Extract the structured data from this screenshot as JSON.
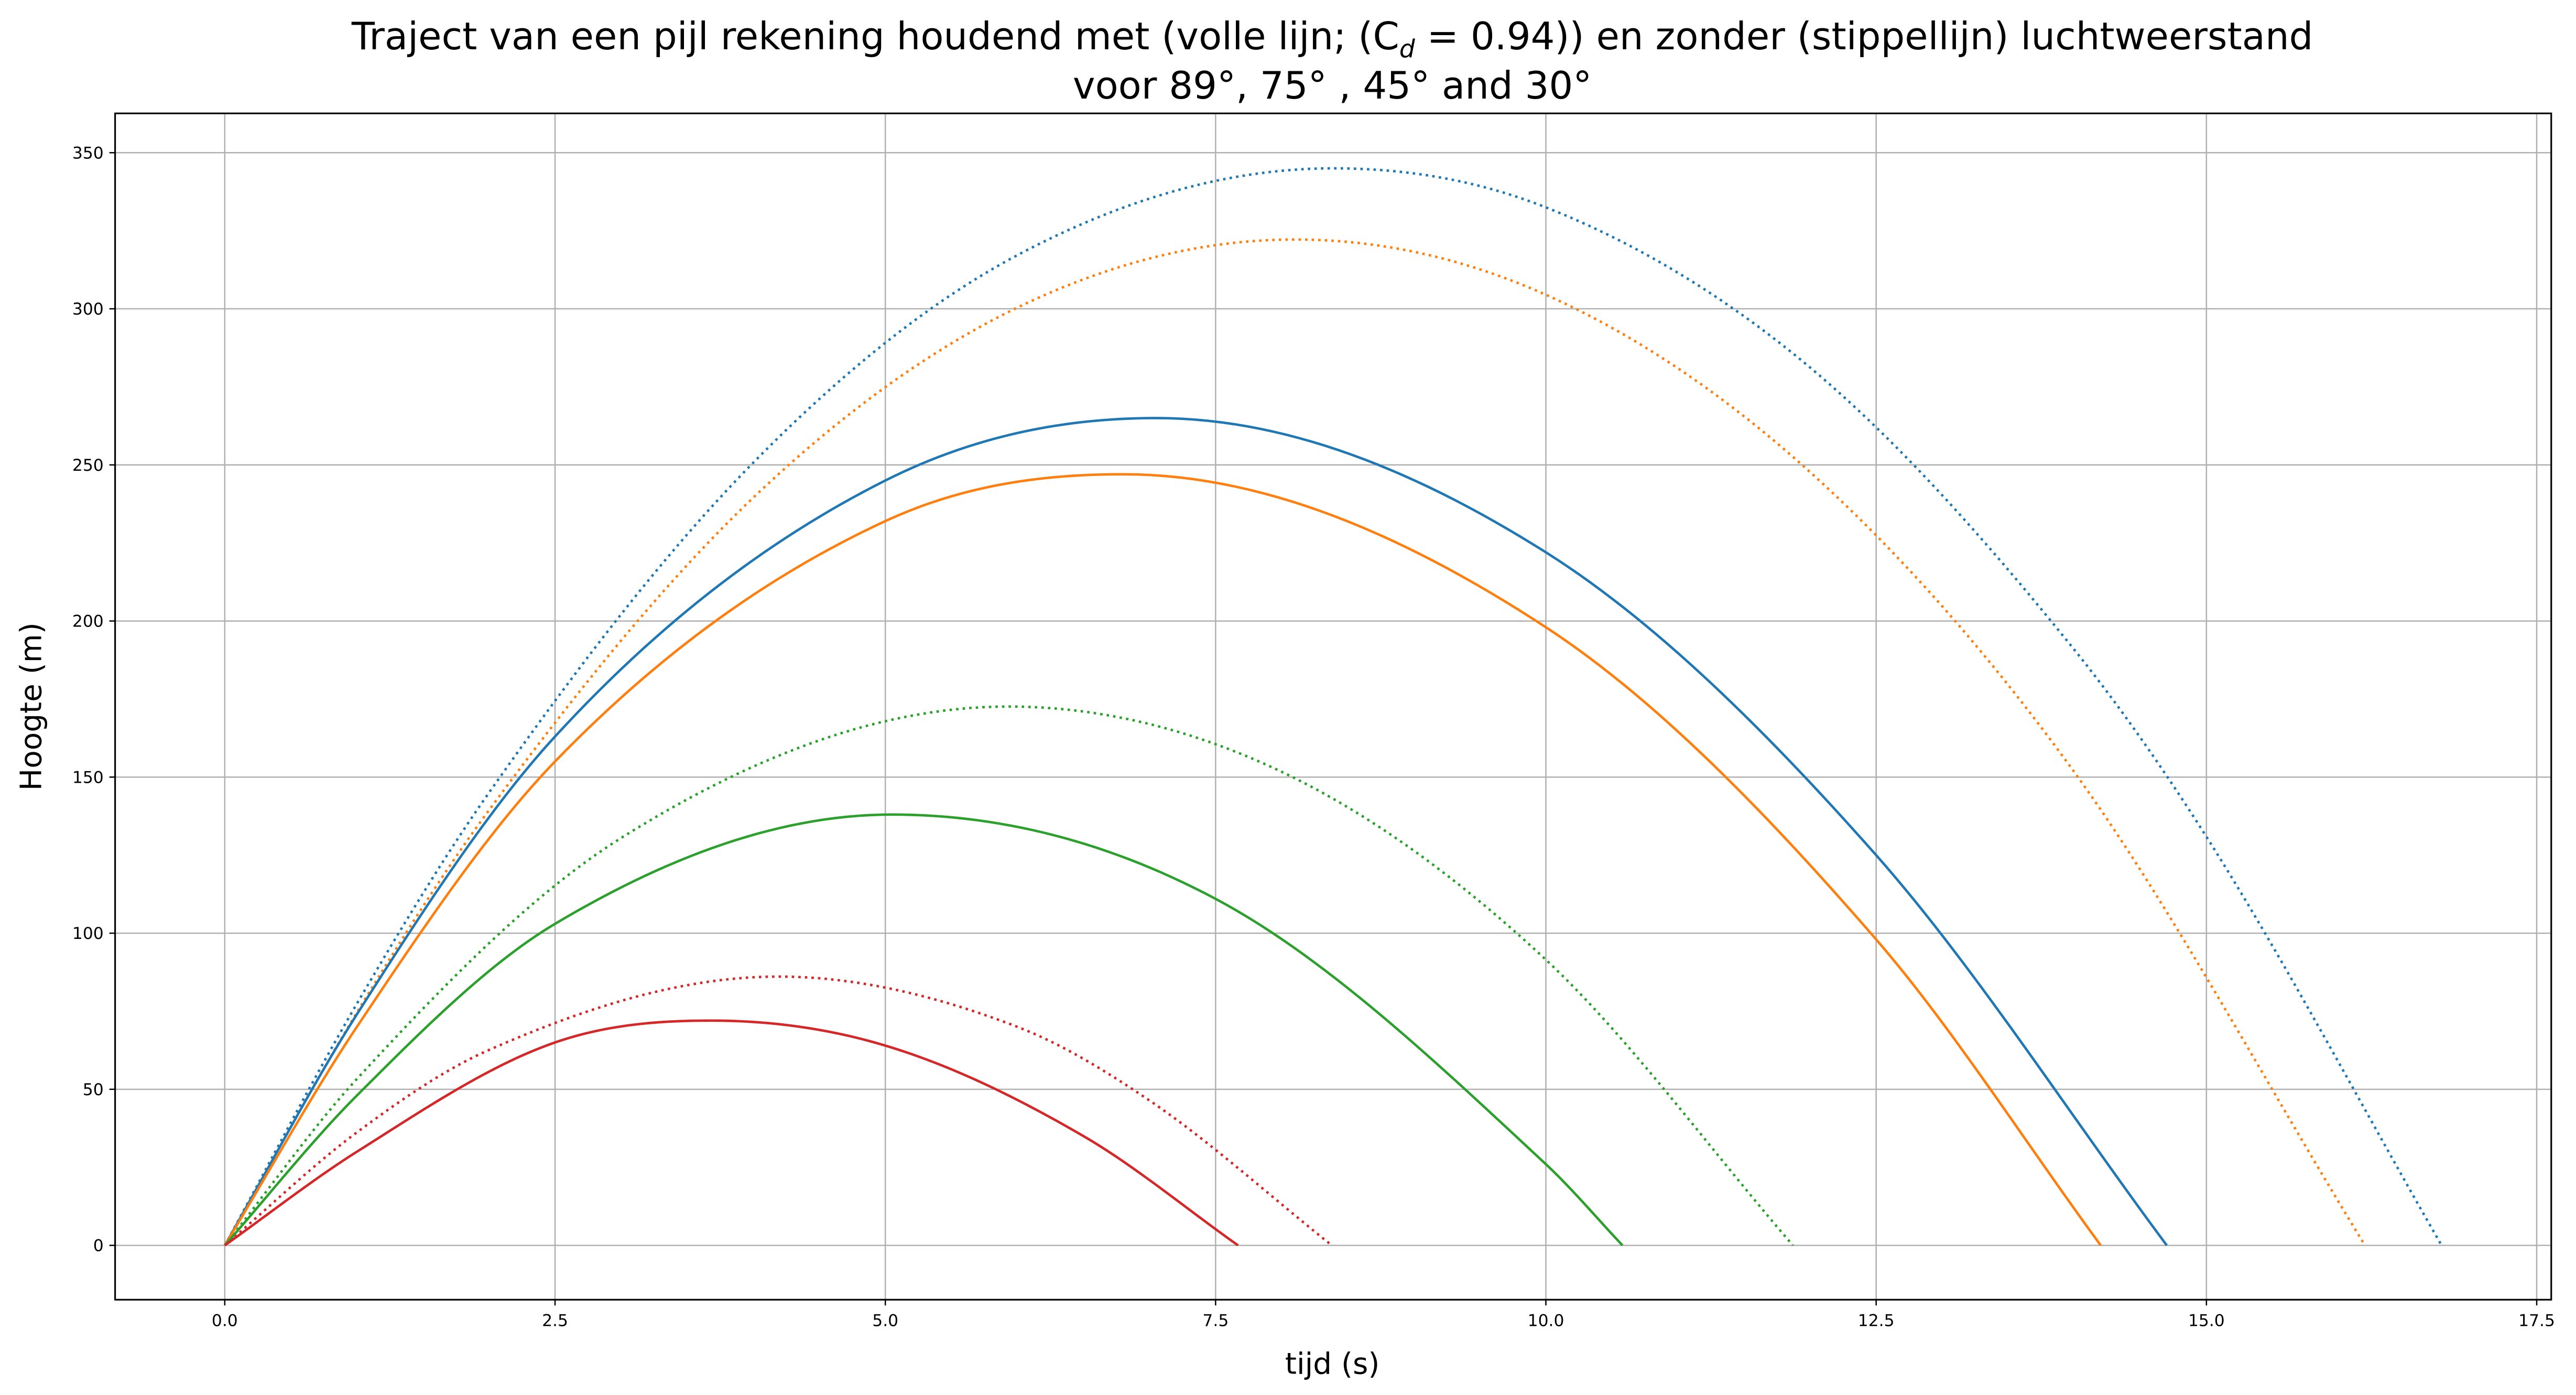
{
  "chart_data": {
    "type": "line",
    "title_line1": "Traject van een pijl rekening houdend met (volle lijn; (C",
    "title_sub": "d",
    "title_line1_end": " = 0.94)) en zonder (stippellijn) luchtweerstand",
    "title_line2": "voor 89°, 75° , 45° and 30°",
    "xlabel": "tijd (s)",
    "ylabel": "Hoogte (m)",
    "xlim": [
      -0.83,
      17.61
    ],
    "ylim": [
      -17.4,
      362.6
    ],
    "xticks": [
      0,
      2.5,
      5,
      7.5,
      10,
      12.5,
      15,
      17.5
    ],
    "xtick_labels": [
      "0.0",
      "2.5",
      "5.0",
      "7.5",
      "10.0",
      "12.5",
      "15.0",
      "17.5"
    ],
    "yticks": [
      0,
      50,
      100,
      150,
      200,
      250,
      300,
      350
    ],
    "ytick_labels": [
      "0",
      "50",
      "100",
      "150",
      "200",
      "250",
      "300",
      "350"
    ],
    "grid": true,
    "legend": "none",
    "series": [
      {
        "color": "#1f77b4",
        "style": "dotted",
        "x": [
          0,
          1,
          2,
          4,
          6,
          8.39,
          10,
          12,
          14,
          15,
          16.78
        ],
        "y": [
          0,
          77.4,
          145,
          250.7,
          317.2,
          345,
          332.5,
          281.2,
          190.8,
          130.9,
          0
        ]
      },
      {
        "color": "#ff7f0e",
        "style": "dotted",
        "x": [
          0,
          1,
          2,
          4,
          6,
          8.1,
          10,
          12,
          14,
          16.2
        ],
        "y": [
          0,
          74.6,
          139.4,
          239.5,
          300.4,
          322.2,
          304.5,
          247.7,
          151.6,
          0
        ]
      },
      {
        "color": "#2ca02c",
        "style": "dotted",
        "x": [
          0,
          1,
          3,
          5.93,
          8,
          10,
          11.87
        ],
        "y": [
          0,
          53.3,
          130.5,
          172.6,
          151.7,
          91.5,
          0
        ]
      },
      {
        "color": "#d62728",
        "style": "dotted",
        "x": [
          0,
          1,
          2,
          4.19,
          6,
          7,
          8.38
        ],
        "y": [
          0,
          36.2,
          62.6,
          86.1,
          70.0,
          46.4,
          0
        ]
      },
      {
        "color": "#1f77b4",
        "style": "solid",
        "x": [
          0,
          1,
          2.5,
          5,
          7.05,
          10,
          12.5,
          14.7
        ],
        "y": [
          0,
          74,
          163,
          245,
          265,
          222,
          125,
          0
        ]
      },
      {
        "color": "#ff7f0e",
        "style": "solid",
        "x": [
          0,
          1,
          2.5,
          5,
          6.8,
          10,
          12.5,
          14.2
        ],
        "y": [
          0,
          70,
          155,
          232,
          247,
          198,
          98,
          0
        ]
      },
      {
        "color": "#2ca02c",
        "style": "solid",
        "x": [
          0,
          1,
          2.5,
          5.05,
          7.5,
          10,
          10.58
        ],
        "y": [
          0,
          48,
          103,
          138,
          111,
          26,
          0
        ]
      },
      {
        "color": "#d62728",
        "style": "solid",
        "x": [
          0,
          1,
          2.5,
          3.68,
          5,
          6.5,
          7.67
        ],
        "y": [
          0,
          30,
          65,
          72,
          64,
          35,
          0
        ]
      }
    ]
  }
}
